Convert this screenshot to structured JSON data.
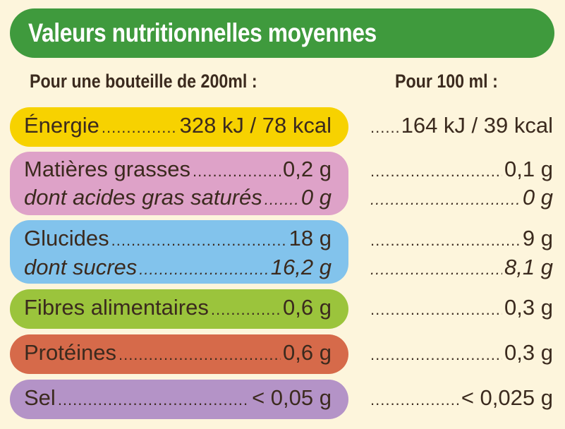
{
  "title": "Valeurs nutritionnelles moyennes",
  "headers": {
    "per_bottle": "Pour une bouteille de 200ml :",
    "per_100ml": "Pour 100 ml :"
  },
  "colors": {
    "title_bg": "#3f9a3d",
    "energy": "#f7d200",
    "fat": "#dea2c8",
    "carbs": "#82c3ec",
    "fibre": "#9bc43c",
    "protein": "#d66a4a",
    "salt": "#b493c7",
    "background": "#fdf5dc"
  },
  "rows": [
    {
      "label": "Énergie",
      "bottle": "328 kJ / 78 kcal",
      "per100": "164 kJ / 39 kcal"
    },
    {
      "label": "Matières grasses",
      "bottle": "0,2 g",
      "per100": "0,1 g"
    },
    {
      "label": "dont acides gras saturés",
      "bottle": "0 g",
      "per100": "0 g"
    },
    {
      "label": "Glucides",
      "bottle": "18 g",
      "per100": "9 g"
    },
    {
      "label": "dont sucres",
      "bottle": "16,2 g",
      "per100": "8,1 g"
    },
    {
      "label": "Fibres alimentaires",
      "bottle": "0,6 g",
      "per100": "0,3 g"
    },
    {
      "label": "Protéines",
      "bottle": "0,6 g",
      "per100": "0,3 g"
    },
    {
      "label": "Sel",
      "bottle": "< 0,05 g",
      "per100": "< 0,025 g"
    }
  ]
}
